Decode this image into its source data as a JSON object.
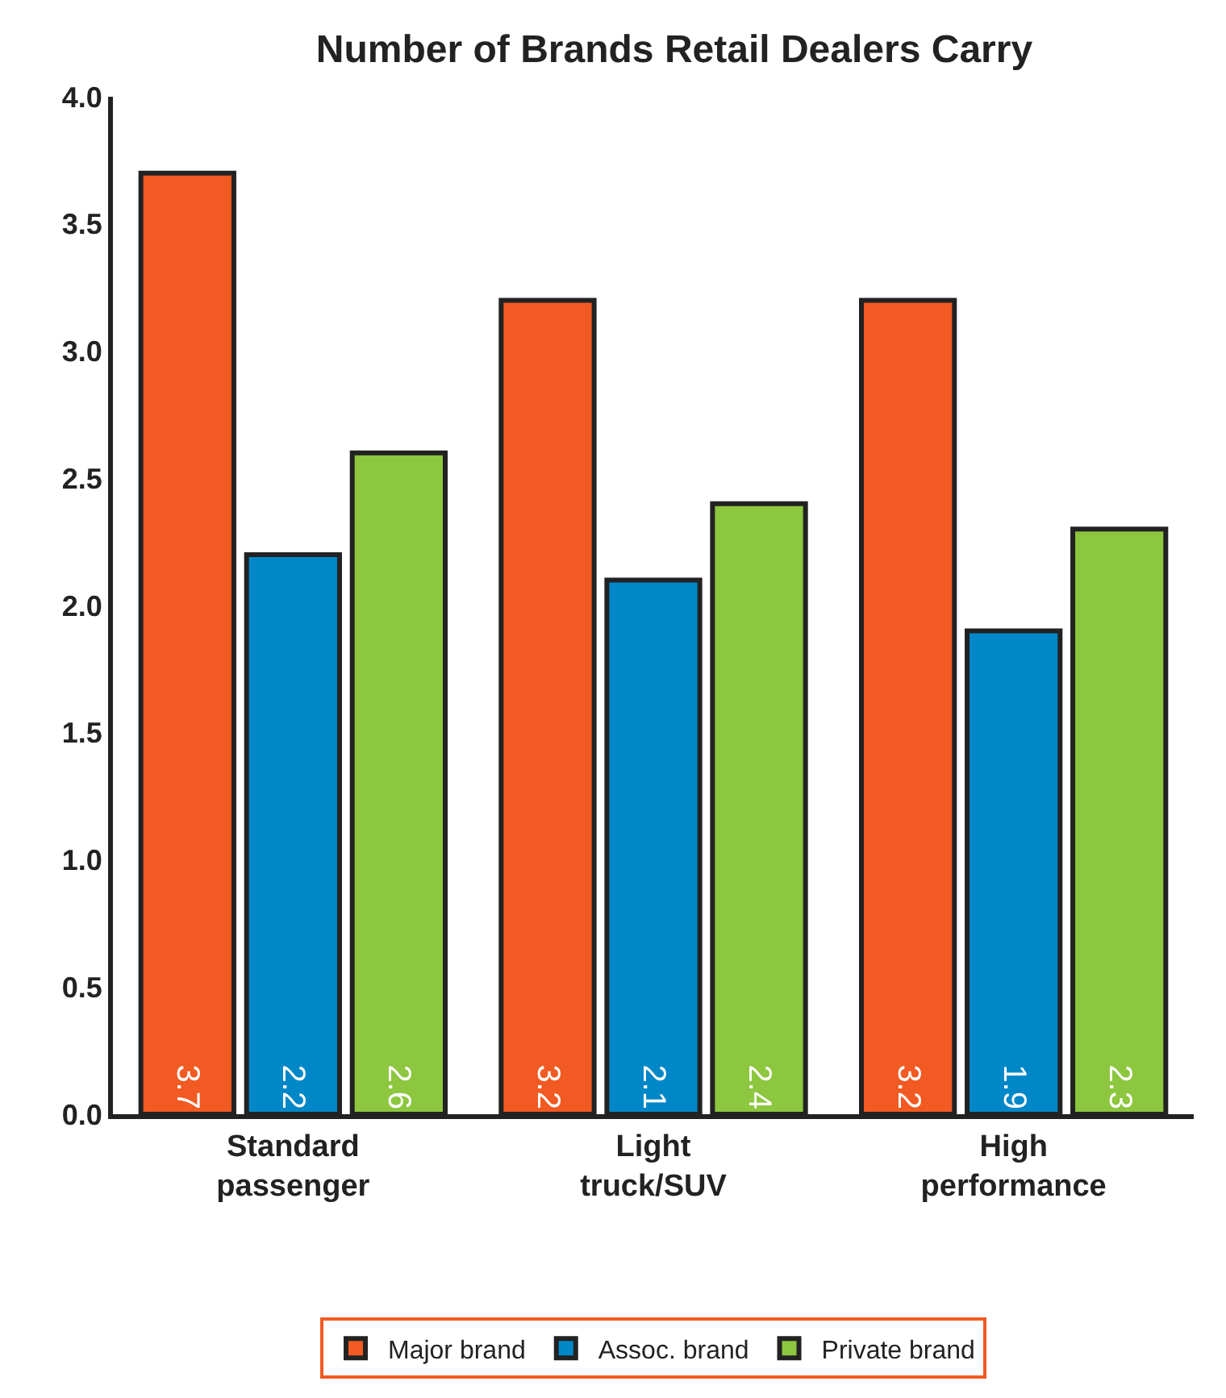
{
  "chart_data": {
    "type": "bar",
    "title": "Number of Brands Retail Dealers Carry",
    "categories": [
      "Standard passenger",
      "Light truck/SUV",
      "High performance"
    ],
    "series": [
      {
        "name": "Major brand",
        "color": "#f15a22",
        "values": [
          3.7,
          3.2,
          3.2
        ]
      },
      {
        "name": "Assoc. brand",
        "color": "#0087c8",
        "values": [
          2.2,
          2.1,
          1.9
        ]
      },
      {
        "name": "Private brand",
        "color": "#8dc63f",
        "values": [
          2.6,
          2.4,
          2.3
        ]
      }
    ],
    "ylim": [
      0,
      4
    ],
    "yticks": [
      {
        "value": 0,
        "label": "0.0"
      },
      {
        "value": 0.5,
        "label": "0.5"
      },
      {
        "value": 1,
        "label": "1.0"
      },
      {
        "value": 1.5,
        "label": "1.5"
      },
      {
        "value": 2,
        "label": "2.0"
      },
      {
        "value": 2.5,
        "label": "2.5"
      },
      {
        "value": 3,
        "label": "3.0"
      },
      {
        "value": 3.5,
        "label": "3.5"
      },
      {
        "value": 4,
        "label": "4.0"
      }
    ],
    "data_labels": true,
    "grid": false,
    "legend": "bottom"
  }
}
